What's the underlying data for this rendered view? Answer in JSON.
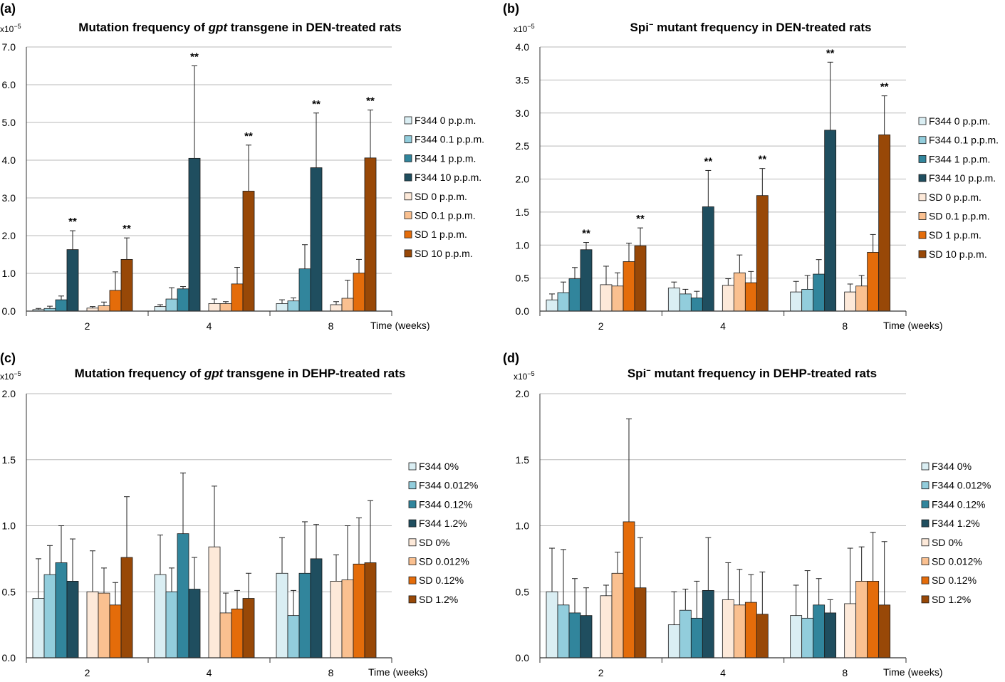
{
  "legend_labels": {
    "den": [
      "F344 0 p.p.m.",
      "F344 0.1 p.p.m.",
      "F344 1 p.p.m.",
      "F344 10 p.p.m.",
      "SD 0 p.p.m.",
      "SD 0.1 p.p.m.",
      "SD 1 p.p.m.",
      "SD 10 p.p.m."
    ],
    "dehp": [
      "F344 0%",
      "F344 0.012%",
      "F344 0.12%",
      "F344 1.2%",
      "SD 0%",
      "SD 0.012%",
      "SD 0.12%",
      "SD 1.2%"
    ]
  },
  "series_colors": [
    "#DAEEF3",
    "#92CDDC",
    "#31859C",
    "#1F4E5F",
    "#FDE9D9",
    "#FAC090",
    "#E46C0A",
    "#984807"
  ],
  "chart_data": [
    {
      "panel": "(a)",
      "type": "bar",
      "title_parts": [
        "Mutation frequency of ",
        "gpt",
        " transgene in DEN-treated rats"
      ],
      "unit_label": "x10",
      "unit_exp": "−5",
      "xlabel": "Time (weeks)",
      "categories": [
        "2",
        "4",
        "8"
      ],
      "ylim": [
        0,
        7
      ],
      "yticks": [
        "0.0",
        "1.0",
        "2.0",
        "3.0",
        "4.0",
        "5.0",
        "6.0",
        "7.0"
      ],
      "series": [
        {
          "name": "F344 0 p.p.m.",
          "values": [
            0.04,
            0.12,
            0.2
          ],
          "err": [
            0.03,
            0.05,
            0.1
          ],
          "sig": [
            false,
            false,
            false
          ]
        },
        {
          "name": "F344 0.1 p.p.m.",
          "values": [
            0.07,
            0.32,
            0.27
          ],
          "err": [
            0.06,
            0.3,
            0.08
          ],
          "sig": [
            false,
            false,
            false
          ]
        },
        {
          "name": "F344 1 p.p.m.",
          "values": [
            0.3,
            0.59,
            1.12
          ],
          "err": [
            0.1,
            0.06,
            0.64
          ],
          "sig": [
            false,
            false,
            false
          ]
        },
        {
          "name": "F344 10 p.p.m.",
          "values": [
            1.63,
            4.05,
            3.8
          ],
          "err": [
            0.5,
            2.45,
            1.45
          ],
          "sig": [
            true,
            true,
            true
          ]
        },
        {
          "name": "SD 0 p.p.m.",
          "values": [
            0.08,
            0.2,
            0.17
          ],
          "err": [
            0.04,
            0.12,
            0.08
          ],
          "sig": [
            false,
            false,
            false
          ]
        },
        {
          "name": "SD 0.1 p.p.m.",
          "values": [
            0.14,
            0.2,
            0.34
          ],
          "err": [
            0.1,
            0.05,
            0.48
          ],
          "sig": [
            false,
            false,
            false
          ]
        },
        {
          "name": "SD 1 p.p.m.",
          "values": [
            0.55,
            0.72,
            1.01
          ],
          "err": [
            0.49,
            0.44,
            0.36
          ],
          "sig": [
            false,
            false,
            false
          ]
        },
        {
          "name": "SD 10 p.p.m.",
          "values": [
            1.37,
            3.18,
            4.06
          ],
          "err": [
            0.57,
            1.22,
            1.27
          ],
          "sig": [
            true,
            true,
            true
          ]
        }
      ],
      "sig_label": "**"
    },
    {
      "panel": "(b)",
      "type": "bar",
      "title_parts": [
        "Spi",
        "−",
        " mutant frequency in DEN-treated rats"
      ],
      "unit_label": "x10",
      "unit_exp": "−5",
      "xlabel": "Time (weeks)",
      "categories": [
        "2",
        "4",
        "8"
      ],
      "ylim": [
        0,
        4
      ],
      "yticks": [
        "0.0",
        "0.5",
        "1.0",
        "1.5",
        "2.0",
        "2.5",
        "3.0",
        "3.5",
        "4.0"
      ],
      "series": [
        {
          "name": "F344 0 p.p.m.",
          "values": [
            0.17,
            0.35,
            0.29
          ],
          "err": [
            0.09,
            0.09,
            0.16
          ],
          "sig": [
            false,
            false,
            false
          ]
        },
        {
          "name": "F344 0.1 p.p.m.",
          "values": [
            0.28,
            0.26,
            0.33
          ],
          "err": [
            0.16,
            0.07,
            0.21
          ],
          "sig": [
            false,
            false,
            false
          ]
        },
        {
          "name": "F344 1 p.p.m.",
          "values": [
            0.49,
            0.2,
            0.56
          ],
          "err": [
            0.17,
            0.1,
            0.22
          ],
          "sig": [
            false,
            false,
            false
          ]
        },
        {
          "name": "F344 10 p.p.m.",
          "values": [
            0.93,
            1.58,
            2.74
          ],
          "err": [
            0.11,
            0.55,
            1.03
          ],
          "sig": [
            true,
            true,
            true
          ]
        },
        {
          "name": "SD 0 p.p.m.",
          "values": [
            0.4,
            0.39,
            0.29
          ],
          "err": [
            0.28,
            0.1,
            0.12
          ],
          "sig": [
            false,
            false,
            false
          ]
        },
        {
          "name": "SD 0.1 p.p.m.",
          "values": [
            0.38,
            0.58,
            0.38
          ],
          "err": [
            0.2,
            0.27,
            0.16
          ],
          "sig": [
            false,
            false,
            false
          ]
        },
        {
          "name": "SD 1 p.p.m.",
          "values": [
            0.75,
            0.43,
            0.89
          ],
          "err": [
            0.28,
            0.17,
            0.27
          ],
          "sig": [
            false,
            false,
            false
          ]
        },
        {
          "name": "SD 10 p.p.m.",
          "values": [
            0.99,
            1.75,
            2.67
          ],
          "err": [
            0.27,
            0.41,
            0.59
          ],
          "sig": [
            true,
            true,
            true
          ]
        }
      ],
      "sig_label": "**"
    },
    {
      "panel": "(c)",
      "type": "bar",
      "title_parts": [
        "Mutation frequency of ",
        "gpt",
        " transgene in DEHP-treated rats"
      ],
      "unit_label": "x10",
      "unit_exp": "−5",
      "xlabel": "Time (weeks)",
      "categories": [
        "2",
        "4",
        "8"
      ],
      "ylim": [
        0,
        2
      ],
      "yticks": [
        "0.0",
        "0.5",
        "1.0",
        "1.5",
        "2.0"
      ],
      "series": [
        {
          "name": "F344 0%",
          "values": [
            0.45,
            0.63,
            0.64
          ],
          "err": [
            0.3,
            0.3,
            0.27
          ],
          "sig": [
            false,
            false,
            false
          ]
        },
        {
          "name": "F344 0.012%",
          "values": [
            0.63,
            0.5,
            0.32
          ],
          "err": [
            0.22,
            0.18,
            0.19
          ],
          "sig": [
            false,
            false,
            false
          ]
        },
        {
          "name": "F344 0.12%",
          "values": [
            0.72,
            0.94,
            0.64
          ],
          "err": [
            0.28,
            0.46,
            0.39
          ],
          "sig": [
            false,
            false,
            false
          ]
        },
        {
          "name": "F344 1.2%",
          "values": [
            0.58,
            0.52,
            0.75
          ],
          "err": [
            0.32,
            0.24,
            0.26
          ],
          "sig": [
            false,
            false,
            false
          ]
        },
        {
          "name": "SD 0%",
          "values": [
            0.5,
            0.84,
            0.58
          ],
          "err": [
            0.31,
            0.46,
            0.2
          ],
          "sig": [
            false,
            false,
            false
          ]
        },
        {
          "name": "SD 0.012%",
          "values": [
            0.49,
            0.34,
            0.59
          ],
          "err": [
            0.19,
            0.15,
            0.41
          ],
          "sig": [
            false,
            false,
            false
          ]
        },
        {
          "name": "SD 0.12%",
          "values": [
            0.4,
            0.37,
            0.71
          ],
          "err": [
            0.17,
            0.14,
            0.35
          ],
          "sig": [
            false,
            false,
            false
          ]
        },
        {
          "name": "SD 1.2%",
          "values": [
            0.76,
            0.45,
            0.72
          ],
          "err": [
            0.46,
            0.19,
            0.47
          ],
          "sig": [
            false,
            false,
            false
          ]
        }
      ],
      "sig_label": "**"
    },
    {
      "panel": "(d)",
      "type": "bar",
      "title_parts": [
        "Spi",
        "−",
        " mutant frequency in DEHP-treated rats"
      ],
      "unit_label": "x10",
      "unit_exp": "−5",
      "xlabel": "Time (weeks)",
      "categories": [
        "2",
        "4",
        "8"
      ],
      "ylim": [
        0,
        2
      ],
      "yticks": [
        "0.0",
        "0.5",
        "1.0",
        "1.5",
        "2.0"
      ],
      "series": [
        {
          "name": "F344 0%",
          "values": [
            0.5,
            0.25,
            0.32
          ],
          "err": [
            0.33,
            0.25,
            0.23
          ],
          "sig": [
            false,
            false,
            false
          ]
        },
        {
          "name": "F344 0.012%",
          "values": [
            0.4,
            0.36,
            0.3
          ],
          "err": [
            0.42,
            0.16,
            0.36
          ],
          "sig": [
            false,
            false,
            false
          ]
        },
        {
          "name": "F344 0.12%",
          "values": [
            0.34,
            0.3,
            0.4
          ],
          "err": [
            0.26,
            0.28,
            0.2
          ],
          "sig": [
            false,
            false,
            false
          ]
        },
        {
          "name": "F344 1.2%",
          "values": [
            0.32,
            0.51,
            0.34
          ],
          "err": [
            0.21,
            0.4,
            0.1
          ],
          "sig": [
            false,
            false,
            false
          ]
        },
        {
          "name": "SD 0%",
          "values": [
            0.47,
            0.44,
            0.41
          ],
          "err": [
            0.08,
            0.28,
            0.42
          ],
          "sig": [
            false,
            false,
            false
          ]
        },
        {
          "name": "SD 0.012%",
          "values": [
            0.64,
            0.4,
            0.58
          ],
          "err": [
            0.16,
            0.27,
            0.26
          ],
          "sig": [
            false,
            false,
            false
          ]
        },
        {
          "name": "SD 0.12%",
          "values": [
            1.03,
            0.42,
            0.58
          ],
          "err": [
            0.78,
            0.21,
            0.37
          ],
          "sig": [
            false,
            false,
            false
          ]
        },
        {
          "name": "SD 1.2%",
          "values": [
            0.53,
            0.33,
            0.4
          ],
          "err": [
            0.38,
            0.32,
            0.48
          ],
          "sig": [
            false,
            false,
            false
          ]
        }
      ],
      "sig_label": "**"
    }
  ]
}
